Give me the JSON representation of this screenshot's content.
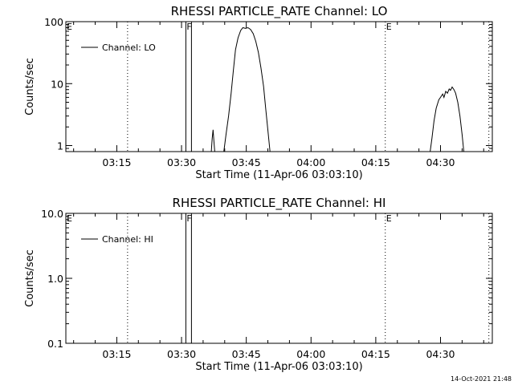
{
  "chart_data": [
    {
      "type": "line",
      "title": "RHESSI PARTICLE_RATE Channel: LO",
      "xlabel": "Start Time (11-Apr-06 03:03:10)",
      "ylabel": "Counts/sec",
      "y_scale": "log",
      "ylim": [
        0.8,
        100
      ],
      "xlim_minutes": [
        183.2,
        282
      ],
      "x_ticks": [
        {
          "label": "03:15",
          "minute": 195
        },
        {
          "label": "03:30",
          "minute": 210
        },
        {
          "label": "03:45",
          "minute": 225
        },
        {
          "label": "04:00",
          "minute": 240
        },
        {
          "label": "04:15",
          "minute": 255
        },
        {
          "label": "04:30",
          "minute": 270
        }
      ],
      "y_ticks": [
        {
          "label": "1",
          "value": 1
        },
        {
          "label": "10",
          "value": 10
        },
        {
          "label": "100",
          "value": 100
        }
      ],
      "legend": {
        "entries": [
          "Channel: LO"
        ],
        "position": "top-left"
      },
      "markers": [
        {
          "label": "E",
          "minute": 183.2,
          "style": "dotted"
        },
        {
          "label": "",
          "minute": 197.5,
          "style": "dotted"
        },
        {
          "label": "F",
          "minute": 211.0,
          "style": "solid"
        },
        {
          "label": "",
          "minute": 212.3,
          "style": "solid"
        },
        {
          "label": "E",
          "minute": 257.2,
          "style": "dotted"
        },
        {
          "label": "",
          "minute": 281.2,
          "style": "dotted"
        }
      ],
      "series": [
        {
          "name": "Channel: LO",
          "segments": [
            [
              [
                216.9,
                0.8
              ],
              [
                217.1,
                1.3
              ],
              [
                217.3,
                1.8
              ],
              [
                217.5,
                1.2
              ],
              [
                217.7,
                0.8
              ]
            ],
            [
              [
                219.8,
                0.8
              ],
              [
                220.3,
                1.5
              ],
              [
                220.9,
                3.0
              ],
              [
                221.5,
                7.0
              ],
              [
                222.0,
                16
              ],
              [
                222.5,
                35
              ],
              [
                223.1,
                55
              ],
              [
                223.7,
                72
              ],
              [
                224.2,
                80
              ],
              [
                224.8,
                78
              ],
              [
                225.4,
                80
              ],
              [
                226.0,
                75
              ],
              [
                226.6,
                64
              ],
              [
                227.2,
                48
              ],
              [
                227.8,
                32
              ],
              [
                228.4,
                18
              ],
              [
                229.0,
                9
              ],
              [
                229.5,
                4.0
              ],
              [
                230.0,
                1.8
              ],
              [
                230.5,
                0.8
              ]
            ],
            [
              [
                267.6,
                0.8
              ],
              [
                268.0,
                1.3
              ],
              [
                268.5,
                2.5
              ],
              [
                269.0,
                4.0
              ],
              [
                269.6,
                5.5
              ],
              [
                270.0,
                6.0
              ],
              [
                270.5,
                6.8
              ],
              [
                270.8,
                6.0
              ],
              [
                271.2,
                7.5
              ],
              [
                271.6,
                7.0
              ],
              [
                272.0,
                8.2
              ],
              [
                272.3,
                7.8
              ],
              [
                272.7,
                8.8
              ],
              [
                273.1,
                8.0
              ],
              [
                273.5,
                7.0
              ],
              [
                274.0,
                5.0
              ],
              [
                274.5,
                3.0
              ],
              [
                275.0,
                1.5
              ],
              [
                275.4,
                0.8
              ]
            ]
          ]
        }
      ]
    },
    {
      "type": "line",
      "title": "RHESSI PARTICLE_RATE Channel: HI",
      "xlabel": "Start Time (11-Apr-06 03:03:10)",
      "ylabel": "Counts/sec",
      "y_scale": "log",
      "ylim": [
        0.1,
        10
      ],
      "xlim_minutes": [
        183.2,
        282
      ],
      "x_ticks": [
        {
          "label": "03:15",
          "minute": 195
        },
        {
          "label": "03:30",
          "minute": 210
        },
        {
          "label": "03:45",
          "minute": 225
        },
        {
          "label": "04:00",
          "minute": 240
        },
        {
          "label": "04:15",
          "minute": 255
        },
        {
          "label": "04:30",
          "minute": 270
        }
      ],
      "y_ticks": [
        {
          "label": "0.1",
          "value": 0.1
        },
        {
          "label": "1.0",
          "value": 1
        },
        {
          "label": "10.0",
          "value": 10
        }
      ],
      "legend": {
        "entries": [
          "Channel: HI"
        ],
        "position": "top-left"
      },
      "markers": [
        {
          "label": "E",
          "minute": 183.2,
          "style": "dotted"
        },
        {
          "label": "",
          "minute": 197.5,
          "style": "dotted"
        },
        {
          "label": "F",
          "minute": 211.0,
          "style": "solid"
        },
        {
          "label": "",
          "minute": 212.3,
          "style": "solid"
        },
        {
          "label": "E",
          "minute": 257.2,
          "style": "dotted"
        },
        {
          "label": "",
          "minute": 281.2,
          "style": "dotted"
        }
      ],
      "series": [
        {
          "name": "Channel: HI",
          "segments": []
        }
      ]
    }
  ],
  "footer": {
    "timestamp": "14-Oct-2021 21:48"
  }
}
